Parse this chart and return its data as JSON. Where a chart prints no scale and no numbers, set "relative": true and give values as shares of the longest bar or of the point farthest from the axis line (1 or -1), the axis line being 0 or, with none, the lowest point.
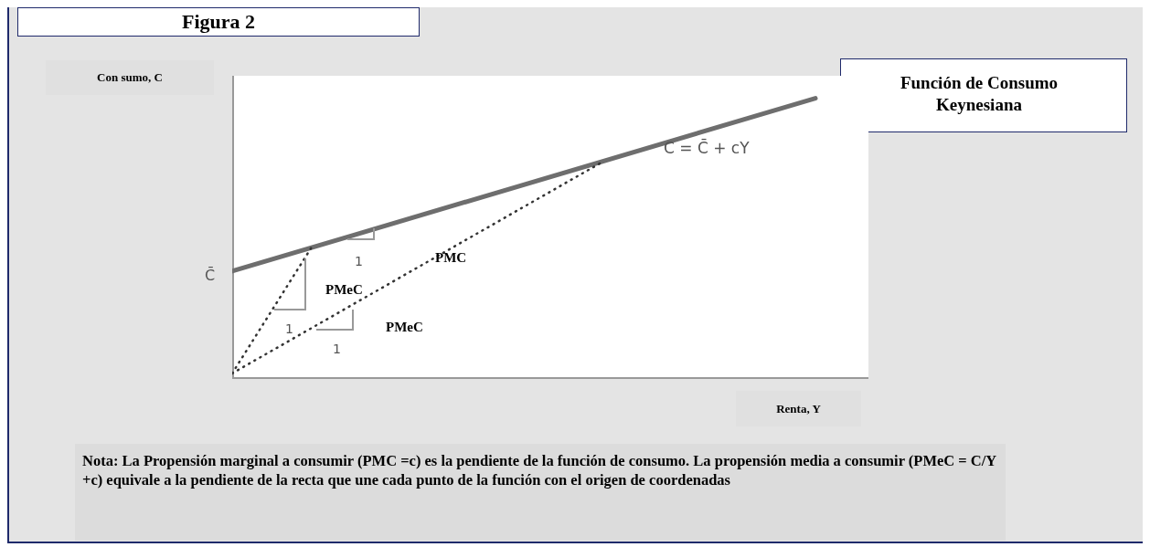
{
  "chart_data": {
    "type": "line",
    "title": "Figura 2",
    "subtitle": "Función de Consumo Keynesiana",
    "xlabel": "Renta, Y",
    "ylabel": "Con sumo, C",
    "relative": true,
    "marker": "none",
    "grid": false,
    "legend": false,
    "categories": [
      null,
      null,
      null,
      null,
      null,
      null,
      null,
      null,
      null,
      null,
      null,
      null,
      null,
      null,
      null,
      null,
      null,
      null,
      null,
      null,
      null,
      null,
      null
    ],
    "series": [
      {
        "name": "C = C̄ + cY",
        "color": "#6e6e6e",
        "line_style": "solid",
        "values": [
          0.384,
          null,
          null,
          null,
          null,
          null,
          null,
          null,
          null,
          null,
          null,
          null,
          null,
          null,
          null,
          null,
          null,
          null,
          null,
          null,
          null,
          null,
          1
        ]
      },
      {
        "color": "#333333",
        "line_style": "dotted",
        "values": [
          0.02,
          null,
          null,
          0.47,
          null,
          null,
          null,
          null,
          null,
          null,
          null,
          null,
          null,
          null,
          null,
          null,
          null,
          null,
          null,
          null,
          null,
          null,
          null
        ]
      },
      {
        "color": "#333333",
        "line_style": "dotted",
        "values": [
          0.02,
          null,
          null,
          null,
          null,
          null,
          null,
          null,
          null,
          null,
          null,
          null,
          null,
          null,
          0.775,
          null,
          null,
          null,
          null,
          null,
          null,
          null,
          null
        ]
      }
    ],
    "annotations": [
      "PMC",
      "PMeC",
      "PMeC",
      "1",
      "1",
      "1",
      "C̄",
      "Nota: La Propensión marginal a consumir (PMC =c) es la pendiente de la función de consumo. La propensión media a consumir (PMeC = C/Y +c) equivale a la pendiente de la recta que une cada punto de la función con el origen de coordenadas"
    ]
  }
}
